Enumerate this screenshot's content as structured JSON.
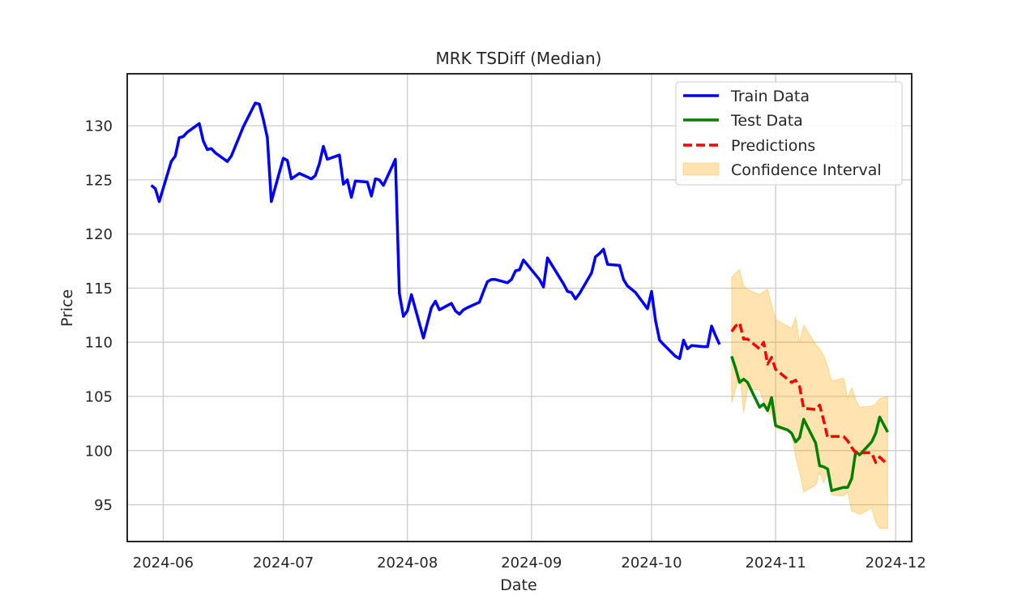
{
  "chart_data": {
    "type": "line",
    "title": "MRK TSDiff (Median)",
    "xlabel": "Date",
    "ylabel": "Price",
    "xlim": [
      "2024-05-23",
      "2024-12-05"
    ],
    "ylim": [
      91.6,
      134.8
    ],
    "grid": true,
    "legend_position": "top-right",
    "x_ticks": [
      "2024-06-01",
      "2024-07-01",
      "2024-08-01",
      "2024-09-01",
      "2024-10-01",
      "2024-11-01",
      "2024-12-01"
    ],
    "x_tick_labels": [
      "2024-06",
      "2024-07",
      "2024-08",
      "2024-09",
      "2024-10",
      "2024-11",
      "2024-12"
    ],
    "y_ticks": [
      95,
      100,
      105,
      110,
      115,
      120,
      125,
      130
    ],
    "y_tick_labels": [
      "95",
      "100",
      "105",
      "110",
      "115",
      "120",
      "125",
      "130"
    ],
    "series": [
      {
        "name": "Train Data",
        "color": "#0000ff",
        "style": "solid",
        "x": [
          "2024-05-29",
          "2024-05-30",
          "2024-05-31",
          "2024-06-03",
          "2024-06-04",
          "2024-06-05",
          "2024-06-06",
          "2024-06-07",
          "2024-06-10",
          "2024-06-11",
          "2024-06-12",
          "2024-06-13",
          "2024-06-14",
          "2024-06-17",
          "2024-06-18",
          "2024-06-20",
          "2024-06-21",
          "2024-06-24",
          "2024-06-25",
          "2024-06-26",
          "2024-06-27",
          "2024-06-28",
          "2024-07-01",
          "2024-07-02",
          "2024-07-03",
          "2024-07-05",
          "2024-07-08",
          "2024-07-09",
          "2024-07-10",
          "2024-07-11",
          "2024-07-12",
          "2024-07-15",
          "2024-07-16",
          "2024-07-17",
          "2024-07-18",
          "2024-07-19",
          "2024-07-22",
          "2024-07-23",
          "2024-07-24",
          "2024-07-25",
          "2024-07-26",
          "2024-07-29",
          "2024-07-30",
          "2024-07-31",
          "2024-08-01",
          "2024-08-02",
          "2024-08-05",
          "2024-08-06",
          "2024-08-07",
          "2024-08-08",
          "2024-08-09",
          "2024-08-12",
          "2024-08-13",
          "2024-08-14",
          "2024-08-15",
          "2024-08-16",
          "2024-08-19",
          "2024-08-20",
          "2024-08-21",
          "2024-08-22",
          "2024-08-23",
          "2024-08-26",
          "2024-08-27",
          "2024-08-28",
          "2024-08-29",
          "2024-08-30",
          "2024-09-03",
          "2024-09-04",
          "2024-09-05",
          "2024-09-06",
          "2024-09-09",
          "2024-09-10",
          "2024-09-11",
          "2024-09-12",
          "2024-09-13",
          "2024-09-16",
          "2024-09-17",
          "2024-09-18",
          "2024-09-19",
          "2024-09-20",
          "2024-09-23",
          "2024-09-24",
          "2024-09-25",
          "2024-09-26",
          "2024-09-27",
          "2024-09-30",
          "2024-10-01",
          "2024-10-02",
          "2024-10-03",
          "2024-10-04",
          "2024-10-07",
          "2024-10-08",
          "2024-10-09",
          "2024-10-10",
          "2024-10-11",
          "2024-10-14",
          "2024-10-15",
          "2024-10-16",
          "2024-10-17",
          "2024-10-18"
        ],
        "values": [
          124.5,
          124.2,
          123.0,
          126.7,
          127.2,
          128.9,
          129.0,
          129.4,
          130.2,
          128.6,
          127.8,
          127.9,
          127.5,
          126.7,
          127.2,
          129.0,
          129.9,
          132.1,
          132.0,
          130.6,
          128.9,
          123.0,
          127.0,
          126.8,
          125.1,
          125.6,
          125.1,
          125.4,
          126.5,
          128.1,
          126.9,
          127.3,
          124.6,
          125.0,
          123.4,
          124.9,
          124.8,
          123.5,
          125.1,
          125.0,
          124.5,
          126.9,
          114.5,
          112.4,
          112.9,
          114.4,
          110.4,
          111.8,
          113.2,
          113.8,
          113.0,
          113.6,
          112.9,
          112.6,
          113.0,
          113.2,
          113.7,
          114.7,
          115.6,
          115.8,
          115.8,
          115.5,
          115.8,
          116.6,
          116.7,
          117.6,
          115.8,
          115.1,
          117.8,
          117.2,
          115.4,
          114.7,
          114.6,
          114.0,
          114.5,
          116.4,
          117.9,
          118.2,
          118.6,
          117.2,
          117.1,
          115.8,
          115.2,
          114.9,
          114.6,
          113.1,
          114.7,
          112.0,
          110.2,
          109.8,
          108.7,
          108.5,
          110.2,
          109.4,
          109.7,
          109.6,
          109.6,
          111.5,
          110.6,
          109.8
        ]
      },
      {
        "name": "Test Data",
        "color": "#008000",
        "style": "solid",
        "x": [
          "2024-10-21",
          "2024-10-22",
          "2024-10-23",
          "2024-10-24",
          "2024-10-25",
          "2024-10-28",
          "2024-10-29",
          "2024-10-30",
          "2024-10-31",
          "2024-11-01",
          "2024-11-04",
          "2024-11-05",
          "2024-11-06",
          "2024-11-07",
          "2024-11-08",
          "2024-11-11",
          "2024-11-12",
          "2024-11-13",
          "2024-11-14",
          "2024-11-15",
          "2024-11-18",
          "2024-11-19",
          "2024-11-20",
          "2024-11-21",
          "2024-11-22",
          "2024-11-25",
          "2024-11-26",
          "2024-11-27",
          "2024-11-29"
        ],
        "values": [
          108.7,
          107.6,
          106.3,
          106.6,
          106.3,
          104.0,
          104.3,
          103.7,
          104.9,
          102.3,
          101.9,
          101.6,
          100.8,
          101.2,
          102.9,
          100.7,
          98.6,
          98.5,
          98.3,
          96.3,
          96.6,
          96.6,
          97.4,
          99.9,
          99.6,
          100.8,
          101.6,
          103.1,
          101.7
        ]
      },
      {
        "name": "Predictions",
        "color": "#ff0000",
        "style": "dashed",
        "x": [
          "2024-10-21",
          "2024-10-22",
          "2024-10-23",
          "2024-10-24",
          "2024-10-25",
          "2024-10-28",
          "2024-10-29",
          "2024-10-30",
          "2024-10-31",
          "2024-11-01",
          "2024-11-04",
          "2024-11-05",
          "2024-11-06",
          "2024-11-07",
          "2024-11-08",
          "2024-11-11",
          "2024-11-12",
          "2024-11-13",
          "2024-11-14",
          "2024-11-15",
          "2024-11-18",
          "2024-11-19",
          "2024-11-20",
          "2024-11-21",
          "2024-11-22",
          "2024-11-25",
          "2024-11-26",
          "2024-11-27",
          "2024-11-29"
        ],
        "values": [
          111.0,
          111.5,
          111.8,
          110.3,
          110.3,
          109.4,
          110.0,
          108.0,
          108.6,
          107.5,
          106.6,
          106.3,
          106.5,
          105.9,
          103.9,
          103.8,
          104.2,
          102.8,
          101.2,
          101.3,
          101.3,
          100.9,
          100.3,
          99.8,
          99.8,
          99.8,
          98.9,
          99.4,
          98.7
        ]
      }
    ],
    "confidence_interval": {
      "name": "Confidence Interval",
      "color": "#ffa500",
      "x": [
        "2024-10-21",
        "2024-10-22",
        "2024-10-23",
        "2024-10-24",
        "2024-10-25",
        "2024-10-28",
        "2024-10-29",
        "2024-10-30",
        "2024-10-31",
        "2024-11-01",
        "2024-11-04",
        "2024-11-05",
        "2024-11-06",
        "2024-11-07",
        "2024-11-08",
        "2024-11-11",
        "2024-11-12",
        "2024-11-13",
        "2024-11-14",
        "2024-11-15",
        "2024-11-18",
        "2024-11-19",
        "2024-11-20",
        "2024-11-21",
        "2024-11-22",
        "2024-11-25",
        "2024-11-26",
        "2024-11-27",
        "2024-11-29"
      ],
      "lower": [
        104.4,
        105.7,
        107.3,
        103.5,
        105.7,
        105.6,
        104.5,
        103.5,
        103.4,
        102.1,
        101.8,
        101.6,
        99.4,
        98.0,
        96.2,
        96.8,
        98.0,
        97.0,
        98.1,
        95.9,
        95.8,
        96.2,
        94.4,
        94.3,
        94.1,
        94.7,
        93.4,
        92.8,
        92.8
      ],
      "upper": [
        116.0,
        116.4,
        116.7,
        115.2,
        114.9,
        114.4,
        114.7,
        114.9,
        113.5,
        112.1,
        111.5,
        111.3,
        112.3,
        110.0,
        111.6,
        109.8,
        109.4,
        108.8,
        107.8,
        106.4,
        106.7,
        104.8,
        105.8,
        104.7,
        104.0,
        104.1,
        104.3,
        104.8,
        105.0
      ]
    }
  }
}
